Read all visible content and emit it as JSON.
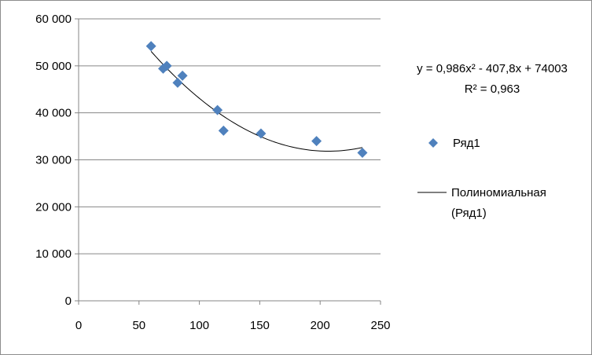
{
  "chart_data": {
    "type": "scatter",
    "xlim": [
      0,
      250
    ],
    "ylim": [
      0,
      60000
    ],
    "x_ticks": [
      "0",
      "50",
      "100",
      "150",
      "200",
      "250"
    ],
    "y_ticks": [
      "0",
      "10 000",
      "20 000",
      "30 000",
      "40 000",
      "50 000",
      "60 000"
    ],
    "x_tick_values": [
      0,
      50,
      100,
      150,
      200,
      250
    ],
    "y_tick_values": [
      0,
      10000,
      20000,
      30000,
      40000,
      50000,
      60000
    ],
    "grid": "horizontal",
    "series": [
      {
        "name": "Ряд1",
        "marker": "diamond",
        "color": "#4f81bd",
        "points": [
          {
            "x": 60,
            "y": 54200
          },
          {
            "x": 70,
            "y": 49400
          },
          {
            "x": 73,
            "y": 50000
          },
          {
            "x": 82,
            "y": 46400
          },
          {
            "x": 86,
            "y": 47900
          },
          {
            "x": 115,
            "y": 40600
          },
          {
            "x": 120,
            "y": 36200
          },
          {
            "x": 151,
            "y": 35600
          },
          {
            "x": 197,
            "y": 34000
          },
          {
            "x": 235,
            "y": 31500
          }
        ]
      }
    ],
    "trendline": {
      "name": "Полиномиальная (Ряд1)",
      "name_line1": "Полиномиальная",
      "name_line2": "(Ряд1)",
      "type": "polynomial",
      "coefficients": [
        0.986,
        -407.8,
        74003
      ],
      "x_range": [
        60,
        235
      ],
      "color": "#000000",
      "equation": "y = 0,986x² - 407,8x + 74003",
      "r_squared": "R² = 0,963"
    },
    "legend_position": "right"
  }
}
